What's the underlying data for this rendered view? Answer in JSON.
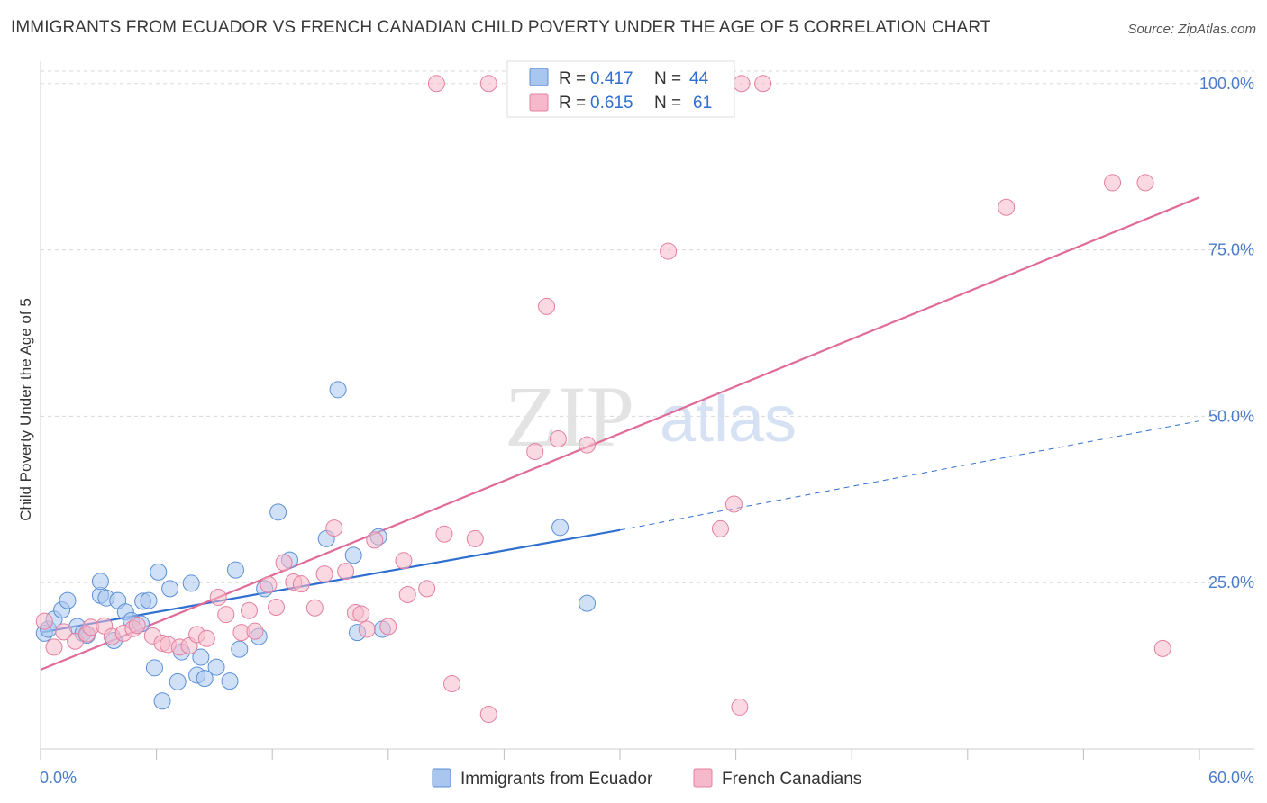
{
  "title": "IMMIGRANTS FROM ECUADOR VS FRENCH CANADIAN CHILD POVERTY UNDER THE AGE OF 5 CORRELATION CHART",
  "source": "Source: ZipAtlas.com",
  "watermark": {
    "zip": "ZIP",
    "atlas": "atlas"
  },
  "colors": {
    "blue_fill": "#a9c6ef",
    "blue_stroke": "#5b8fd6",
    "blue_line": "#2f6fd0",
    "pink_fill": "#f5b9cb",
    "pink_stroke": "#e37fa0",
    "pink_line": "#e06b98",
    "grid": "#d8d8d8",
    "tick_text": "#4a7cc9"
  },
  "legend": {
    "rows": [
      {
        "r_label": "R =",
        "r_value": "0.417",
        "n_label": "N =",
        "n_value": "44",
        "series": "blue"
      },
      {
        "r_label": "R =",
        "r_value": "0.615",
        "n_label": "N =",
        "n_value": "61",
        "series": "pink"
      }
    ]
  },
  "chart_data": {
    "type": "scatter",
    "title": "IMMIGRANTS FROM ECUADOR VS FRENCH CANADIAN CHILD POVERTY UNDER THE AGE OF 5 CORRELATION CHART",
    "xlabel": "",
    "ylabel": "Child Poverty Under the Age of 5",
    "xlim": [
      0,
      60
    ],
    "ylim": [
      0,
      102
    ],
    "x_tick_labels": [
      "0.0%",
      "60.0%"
    ],
    "y_ticks": [
      25,
      50,
      75,
      100
    ],
    "y_tick_labels": [
      "25.0%",
      "50.0%",
      "75.0%",
      "100.0%"
    ],
    "grid": true,
    "legend_position": "top-center",
    "series": [
      {
        "name": "Immigrants from Ecuador",
        "color": "blue",
        "R": 0.417,
        "N": 44,
        "points": [
          [
            0.2,
            17.4
          ],
          [
            0.4,
            18.0
          ],
          [
            0.7,
            19.5
          ],
          [
            1.1,
            20.9
          ],
          [
            1.4,
            22.3
          ],
          [
            1.9,
            18.4
          ],
          [
            2.2,
            17.4
          ],
          [
            2.4,
            17.1
          ],
          [
            3.1,
            23.1
          ],
          [
            3.1,
            25.2
          ],
          [
            3.4,
            22.7
          ],
          [
            3.8,
            16.3
          ],
          [
            4.0,
            22.3
          ],
          [
            4.4,
            20.6
          ],
          [
            4.7,
            19.3
          ],
          [
            5.2,
            18.8
          ],
          [
            5.3,
            22.2
          ],
          [
            5.6,
            22.3
          ],
          [
            5.9,
            12.2
          ],
          [
            6.1,
            26.6
          ],
          [
            6.3,
            7.2
          ],
          [
            6.7,
            24.1
          ],
          [
            7.1,
            10.1
          ],
          [
            7.3,
            14.6
          ],
          [
            7.8,
            24.9
          ],
          [
            8.1,
            11.1
          ],
          [
            8.3,
            13.8
          ],
          [
            8.5,
            10.6
          ],
          [
            9.1,
            12.3
          ],
          [
            9.8,
            10.2
          ],
          [
            10.1,
            26.9
          ],
          [
            10.3,
            15.0
          ],
          [
            11.3,
            16.9
          ],
          [
            11.6,
            24.1
          ],
          [
            12.3,
            35.6
          ],
          [
            12.9,
            28.4
          ],
          [
            14.8,
            31.6
          ],
          [
            15.4,
            54.0
          ],
          [
            16.2,
            29.1
          ],
          [
            16.4,
            17.5
          ],
          [
            17.5,
            31.9
          ],
          [
            17.7,
            18.0
          ],
          [
            26.9,
            33.3
          ],
          [
            28.3,
            21.9
          ]
        ],
        "trendline": {
          "x": [
            0,
            30
          ],
          "y": [
            17.5,
            32.9
          ]
        },
        "trendline_extension": {
          "x": [
            30,
            60
          ],
          "y": [
            32.9,
            49.3
          ]
        }
      },
      {
        "name": "French Canadians",
        "color": "pink",
        "R": 0.615,
        "N": 61,
        "points": [
          [
            0.2,
            19.2
          ],
          [
            0.7,
            15.3
          ],
          [
            1.2,
            17.6
          ],
          [
            1.8,
            16.2
          ],
          [
            2.4,
            17.3
          ],
          [
            2.6,
            18.3
          ],
          [
            3.3,
            18.5
          ],
          [
            3.7,
            16.9
          ],
          [
            4.3,
            17.4
          ],
          [
            4.8,
            18.1
          ],
          [
            5.0,
            18.6
          ],
          [
            5.8,
            17.0
          ],
          [
            6.3,
            15.9
          ],
          [
            6.6,
            15.7
          ],
          [
            7.2,
            15.3
          ],
          [
            7.7,
            15.5
          ],
          [
            8.1,
            17.2
          ],
          [
            8.6,
            16.6
          ],
          [
            9.2,
            22.8
          ],
          [
            9.6,
            20.2
          ],
          [
            10.4,
            17.5
          ],
          [
            10.8,
            20.8
          ],
          [
            11.1,
            17.7
          ],
          [
            11.8,
            24.7
          ],
          [
            12.2,
            21.3
          ],
          [
            12.6,
            28.0
          ],
          [
            13.1,
            25.1
          ],
          [
            13.5,
            24.8
          ],
          [
            14.2,
            21.2
          ],
          [
            14.7,
            26.3
          ],
          [
            15.2,
            33.2
          ],
          [
            15.8,
            26.7
          ],
          [
            16.3,
            20.5
          ],
          [
            16.6,
            20.3
          ],
          [
            16.9,
            18.0
          ],
          [
            17.3,
            31.4
          ],
          [
            18.0,
            18.4
          ],
          [
            18.8,
            28.3
          ],
          [
            19.0,
            23.2
          ],
          [
            20.0,
            24.1
          ],
          [
            20.5,
            100.0
          ],
          [
            20.9,
            32.3
          ],
          [
            21.3,
            9.8
          ],
          [
            22.5,
            31.6
          ],
          [
            23.2,
            100.0
          ],
          [
            23.2,
            5.2
          ],
          [
            25.6,
            44.7
          ],
          [
            26.2,
            66.5
          ],
          [
            26.8,
            46.6
          ],
          [
            28.3,
            45.7
          ],
          [
            29.3,
            100.0
          ],
          [
            32.5,
            74.8
          ],
          [
            35.2,
            33.1
          ],
          [
            35.9,
            36.8
          ],
          [
            36.2,
            6.3
          ],
          [
            36.3,
            100.0
          ],
          [
            37.4,
            100.0
          ],
          [
            50.0,
            81.4
          ],
          [
            55.5,
            85.1
          ],
          [
            57.2,
            85.1
          ],
          [
            58.1,
            15.1
          ]
        ],
        "trendline": {
          "x": [
            0,
            60
          ],
          "y": [
            11.9,
            82.9
          ]
        }
      }
    ]
  },
  "bottom_legend": {
    "items": [
      {
        "label": "Immigrants from Ecuador",
        "series": "blue"
      },
      {
        "label": "French Canadians",
        "series": "pink"
      }
    ]
  }
}
